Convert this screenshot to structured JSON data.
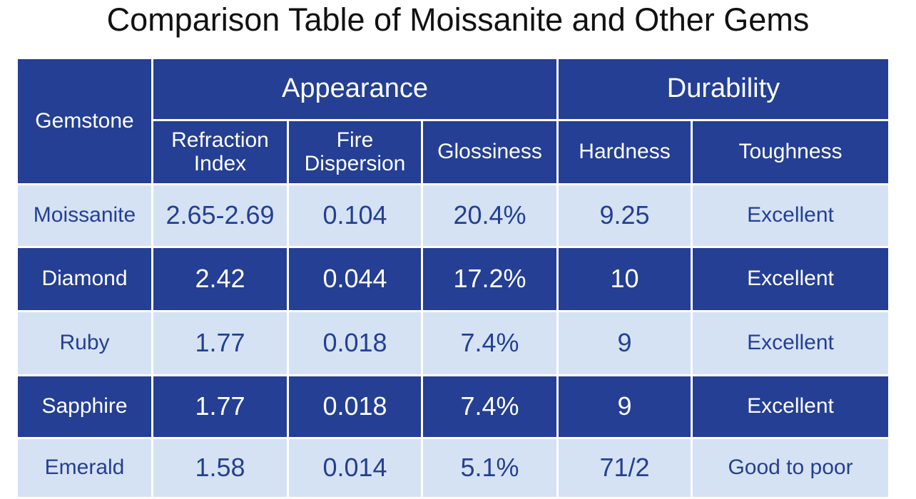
{
  "title": "Comparison Table of Moissanite and Other Gems",
  "table": {
    "header": {
      "gemstone": "Gemstone",
      "groups": [
        "Appearance",
        "Durability"
      ],
      "columns": [
        "Refraction Index",
        "Fire Dispersion",
        "Glossiness",
        "Hardness",
        "Toughness"
      ]
    },
    "rows": [
      [
        "Moissanite",
        "2.65-2.69",
        "0.104",
        "20.4%",
        "9.25",
        "Excellent"
      ],
      [
        "Diamond",
        "2.42",
        "0.044",
        "17.2%",
        "10",
        "Excellent"
      ],
      [
        "Ruby",
        "1.77",
        "0.018",
        "7.4%",
        "9",
        "Excellent"
      ],
      [
        "Sapphire",
        "1.77",
        "0.018",
        "7.4%",
        "9",
        "Excellent"
      ],
      [
        "Emerald",
        "1.58",
        "0.014",
        "5.1%",
        "71/2",
        "Good to poor"
      ]
    ]
  }
}
